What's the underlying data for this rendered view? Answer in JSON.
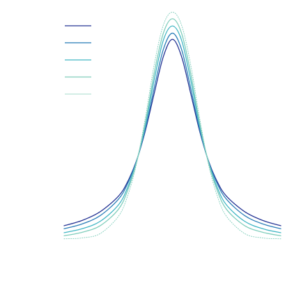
{
  "chart_data": {
    "type": "line",
    "title": "",
    "xlabel": "",
    "ylabel": "",
    "axes_visible": false,
    "grid": false,
    "legend": {
      "placement": "top-left",
      "labels_visible": false
    },
    "x": [
      -3.0,
      -2.5,
      -2.0,
      -1.5,
      -1.25,
      -1.0,
      -0.75,
      -0.5,
      -0.25,
      0.0,
      0.25,
      0.5,
      0.75,
      1.0,
      1.25,
      1.5,
      2.0,
      2.5,
      3.0
    ],
    "xlim": [
      -3.0,
      3.0
    ],
    "ylim": [
      0.0,
      1.0
    ],
    "series": [
      {
        "color": "#253494",
        "line_style": "solid",
        "values": [
          0.064,
          0.088,
          0.128,
          0.198,
          0.262,
          0.359,
          0.498,
          0.672,
          0.838,
          0.916,
          0.838,
          0.672,
          0.498,
          0.359,
          0.262,
          0.198,
          0.128,
          0.088,
          0.064
        ]
      },
      {
        "color": "#2c7fb8",
        "line_style": "solid",
        "values": [
          0.05,
          0.072,
          0.11,
          0.184,
          0.253,
          0.357,
          0.507,
          0.697,
          0.871,
          0.944,
          0.871,
          0.697,
          0.507,
          0.357,
          0.253,
          0.184,
          0.11,
          0.072,
          0.05
        ]
      },
      {
        "color": "#41b6c4",
        "line_style": "solid",
        "values": [
          0.032,
          0.05,
          0.084,
          0.158,
          0.235,
          0.353,
          0.523,
          0.735,
          0.913,
          0.977,
          0.913,
          0.735,
          0.523,
          0.353,
          0.235,
          0.158,
          0.084,
          0.05,
          0.032
        ]
      },
      {
        "color": "#7fcdbb",
        "line_style": "solid",
        "values": [
          0.018,
          0.034,
          0.064,
          0.138,
          0.221,
          0.351,
          0.536,
          0.766,
          0.945,
          1.01,
          0.945,
          0.766,
          0.536,
          0.351,
          0.221,
          0.138,
          0.064,
          0.034,
          0.018
        ]
      },
      {
        "color": "#7fcdbb",
        "line_style": "dotted",
        "values": [
          0.004,
          0.008,
          0.028,
          0.106,
          0.196,
          0.343,
          0.558,
          0.804,
          0.982,
          1.04,
          0.982,
          0.804,
          0.558,
          0.343,
          0.196,
          0.106,
          0.028,
          0.008,
          0.004
        ]
      }
    ]
  }
}
